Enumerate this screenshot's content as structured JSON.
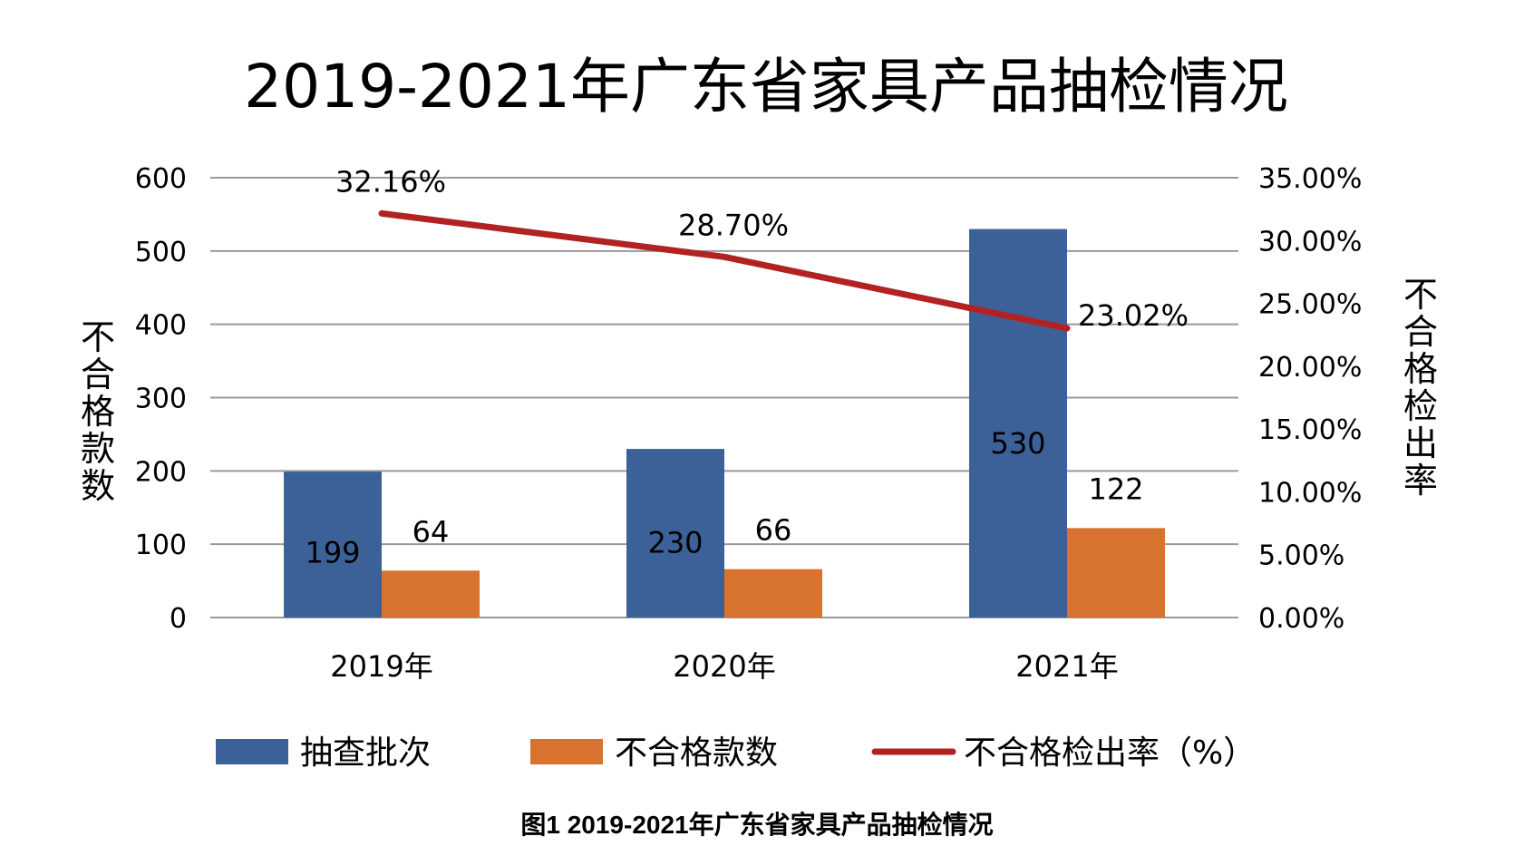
{
  "chart_data": {
    "type": "bar",
    "title": "2019-2021年广东省家具产品抽检情况",
    "categories": [
      "2019年",
      "2020年",
      "2021年"
    ],
    "series": [
      {
        "name": "抽查批次",
        "type": "bar",
        "axis": "left",
        "color": "#3c6198",
        "values": [
          199,
          230,
          530
        ],
        "labels": [
          "199",
          "230",
          "530"
        ]
      },
      {
        "name": "不合格款数",
        "type": "bar",
        "axis": "left",
        "color": "#d7722f",
        "values": [
          64,
          66,
          122
        ],
        "labels": [
          "64",
          "66",
          "122"
        ]
      },
      {
        "name": "不合格检出率（%）",
        "type": "line",
        "axis": "right",
        "color": "#b22222",
        "values": [
          32.16,
          28.7,
          23.02
        ],
        "labels": [
          "32.16%",
          "28.70%",
          "23.02%"
        ]
      }
    ],
    "ylabel": "不合格款数",
    "ylabel_right": "不合格检出率",
    "ylim": [
      0,
      600
    ],
    "ylim_right": [
      0,
      35
    ],
    "yticks": [
      "0",
      "100",
      "200",
      "300",
      "400",
      "500",
      "600"
    ],
    "yticks_right": [
      "0.00%",
      "5.00%",
      "10.00%",
      "15.00%",
      "20.00%",
      "25.00%",
      "30.00%",
      "35.00%"
    ],
    "grid": true,
    "legend_position": "bottom"
  },
  "caption": "图1 2019-2021年广东省家具产品抽检情况"
}
